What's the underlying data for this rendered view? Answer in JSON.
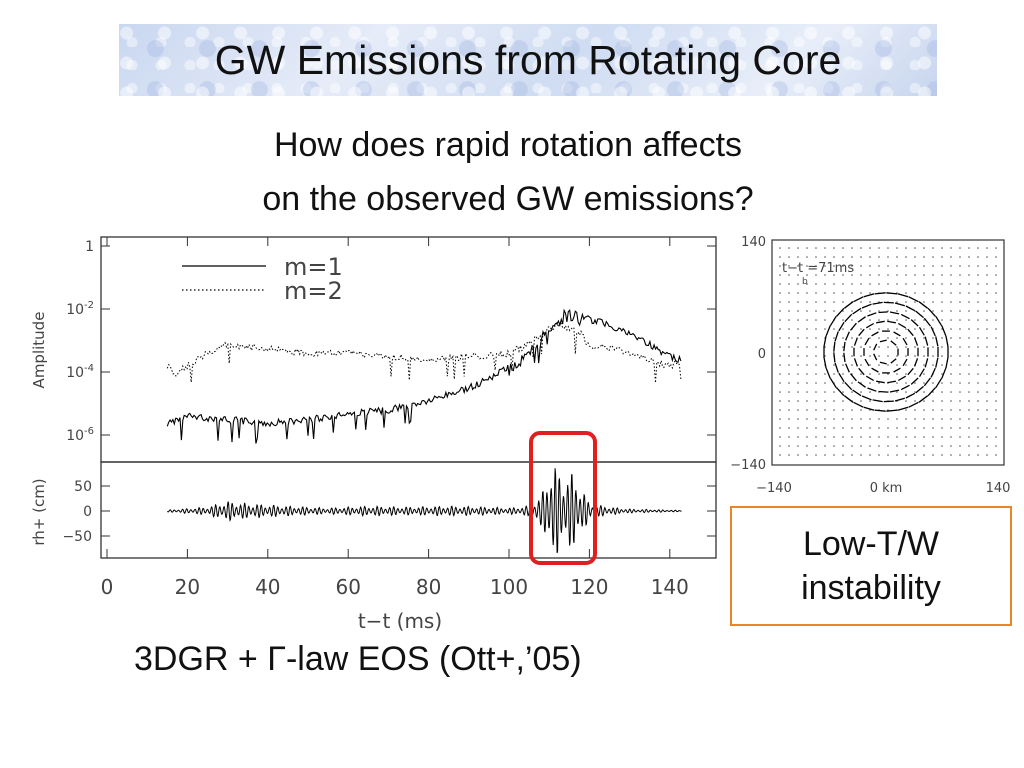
{
  "slide": {
    "title": "GW Emissions from Rotating Core",
    "question_line1": "How does rapid rotation affects",
    "question_line2": "on the observed GW emissions?",
    "callout_line1": "Low-T/W",
    "callout_line2": "instability",
    "footer": "3DGR + Γ-law EOS (Ott+,’05)"
  },
  "colors": {
    "highlight_box": "#e02020",
    "callout_border": "#e8862a",
    "banner": "#d7e1f4"
  },
  "chart_data": [
    {
      "type": "line",
      "ylabel": "Amplitude",
      "yscale": "log",
      "ylim": [
        3e-07,
        1
      ],
      "xlim": [
        0,
        150
      ],
      "ytick_labels": [
        "1",
        "10-2",
        "10-4",
        "10-6"
      ],
      "legend_placement": "top-left",
      "series": [
        {
          "name": "m=1",
          "style": "solid",
          "x": [
            15,
            20,
            30,
            40,
            50,
            60,
            70,
            80,
            90,
            95,
            100,
            105,
            110,
            112,
            115,
            118,
            120,
            125,
            130,
            135,
            140,
            143
          ],
          "y": [
            3e-06,
            5e-06,
            4e-06,
            3e-06,
            4e-06,
            6e-06,
            8e-06,
            1.5e-05,
            4e-05,
            8e-05,
            0.0002,
            0.0005,
            0.004,
            0.008,
            0.01,
            0.008,
            0.006,
            0.004,
            0.002,
            0.001,
            0.0004,
            0.0003
          ]
        },
        {
          "name": "m=2",
          "style": "dotted",
          "x": [
            15,
            17,
            20,
            25,
            30,
            35,
            40,
            50,
            60,
            70,
            80,
            90,
            100,
            105,
            110,
            112,
            115,
            118,
            120,
            125,
            130,
            135,
            140,
            143
          ],
          "y": [
            0.0002,
            0.0001,
            0.0002,
            0.0005,
            0.001,
            0.0008,
            0.0007,
            0.0005,
            0.0005,
            0.0004,
            0.0003,
            0.0004,
            0.0005,
            0.001,
            0.003,
            0.004,
            0.003,
            0.002,
            0.0008,
            0.0008,
            0.0005,
            0.0003,
            0.0002,
            0.0003
          ]
        }
      ]
    },
    {
      "type": "line",
      "ylabel": "rh+ (cm)",
      "ylim": [
        -100,
        100
      ],
      "yticks": [
        50,
        0,
        -50
      ],
      "ytick_labels": [
        "50",
        "0",
        "−50"
      ],
      "xlabel": "t−t  (ms)",
      "xlim": [
        0,
        150
      ],
      "xticks": [
        0,
        20,
        40,
        60,
        80,
        100,
        120,
        140
      ],
      "xtick_labels": [
        "0",
        "20",
        "40",
        "60",
        "80",
        "100",
        "120",
        "140"
      ],
      "series": [
        {
          "name": "",
          "x": [
            15,
            25,
            30,
            35,
            45,
            55,
            65,
            75,
            85,
            95,
            100,
            105,
            108,
            110,
            112,
            114,
            116,
            118,
            120,
            125,
            130,
            140,
            143
          ],
          "amplitude": [
            2,
            8,
            20,
            15,
            10,
            6,
            10,
            8,
            10,
            8,
            6,
            10,
            30,
            90,
            90,
            70,
            80,
            50,
            15,
            8,
            4,
            2,
            1
          ]
        }
      ],
      "highlight_x_range": [
        108,
        120
      ]
    },
    {
      "type": "scatter",
      "annotation": "t−t  =71ms",
      "annotation_subscript": "b",
      "xlim": [
        -140,
        140
      ],
      "ylim": [
        -140,
        140
      ],
      "ytick_labels": [
        "140",
        "0",
        "−140"
      ],
      "xtick_labels": [
        "−140",
        "0 km",
        "140"
      ]
    }
  ]
}
